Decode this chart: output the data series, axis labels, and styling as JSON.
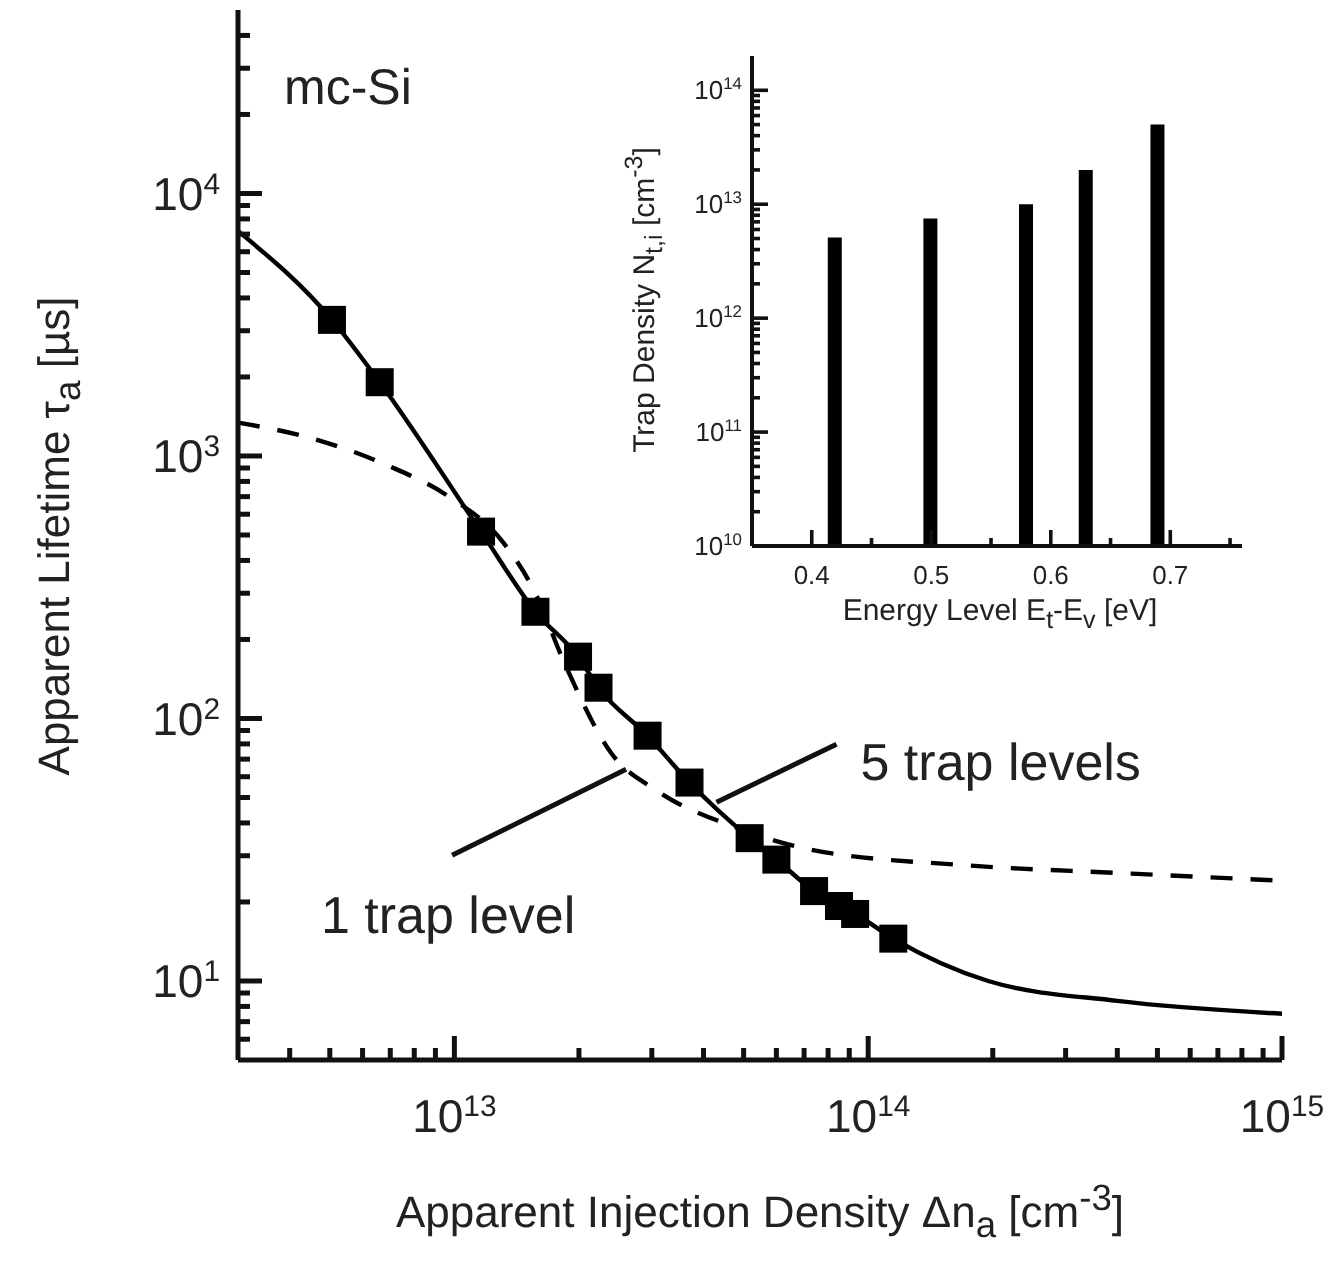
{
  "chart_data": [
    {
      "type": "line",
      "xlabel": "Apparent Injection Density Δn$_{a}$ [cm$^{-3}$]",
      "ylabel": "Apparent Lifetime τ$_{a}$ [µs]",
      "log": "xy",
      "xlim": [
        3000000000000.0,
        1000000000000000.0
      ],
      "ylim": [
        5,
        50000
      ],
      "xticks": [
        {
          "value": 4000000000000.0,
          "label": null
        },
        {
          "value": 5000000000000.0,
          "label": null
        },
        {
          "value": 6000000000000.0,
          "label": null
        },
        {
          "value": 7000000000000.0,
          "label": null
        },
        {
          "value": 8000000000000.0,
          "label": null
        },
        {
          "value": 9000000000000.0,
          "label": null
        },
        {
          "value": 10000000000000.0,
          "label": "10$^{13}$"
        },
        {
          "value": 20000000000000.0,
          "label": null
        },
        {
          "value": 30000000000000.0,
          "label": null
        },
        {
          "value": 40000000000000.0,
          "label": null
        },
        {
          "value": 50000000000000.0,
          "label": null
        },
        {
          "value": 60000000000000.0,
          "label": null
        },
        {
          "value": 70000000000000.0,
          "label": null
        },
        {
          "value": 80000000000000.0,
          "label": null
        },
        {
          "value": 90000000000000.0,
          "label": null
        },
        {
          "value": 100000000000000.0,
          "label": "10$^{14}$"
        },
        {
          "value": 200000000000000.0,
          "label": null
        },
        {
          "value": 300000000000000.0,
          "label": null
        },
        {
          "value": 400000000000000.0,
          "label": null
        },
        {
          "value": 500000000000000.0,
          "label": null
        },
        {
          "value": 600000000000000.0,
          "label": null
        },
        {
          "value": 700000000000000.0,
          "label": null
        },
        {
          "value": 800000000000000.0,
          "label": null
        },
        {
          "value": 900000000000000.0,
          "label": null
        },
        {
          "value": 1000000000000000.0,
          "label": "10$^{15}$"
        }
      ],
      "yticks": [
        {
          "value": 6,
          "label": null
        },
        {
          "value": 7,
          "label": null
        },
        {
          "value": 8,
          "label": null
        },
        {
          "value": 9,
          "label": null
        },
        {
          "value": 10,
          "label": "10$^{1}$"
        },
        {
          "value": 20,
          "label": null
        },
        {
          "value": 30,
          "label": null
        },
        {
          "value": 40,
          "label": null
        },
        {
          "value": 50,
          "label": null
        },
        {
          "value": 60,
          "label": null
        },
        {
          "value": 70,
          "label": null
        },
        {
          "value": 80,
          "label": null
        },
        {
          "value": 90,
          "label": null
        },
        {
          "value": 100,
          "label": "10$^{2}$"
        },
        {
          "value": 200,
          "label": null
        },
        {
          "value": 300,
          "label": null
        },
        {
          "value": 400,
          "label": null
        },
        {
          "value": 500,
          "label": null
        },
        {
          "value": 600,
          "label": null
        },
        {
          "value": 700,
          "label": null
        },
        {
          "value": 800,
          "label": null
        },
        {
          "value": 900,
          "label": null
        },
        {
          "value": 1000,
          "label": "10$^{3}$"
        },
        {
          "value": 2000,
          "label": null
        },
        {
          "value": 3000,
          "label": null
        },
        {
          "value": 4000,
          "label": null
        },
        {
          "value": 5000,
          "label": null
        },
        {
          "value": 6000,
          "label": null
        },
        {
          "value": 7000,
          "label": null
        },
        {
          "value": 8000,
          "label": null
        },
        {
          "value": 9000,
          "label": null
        },
        {
          "value": 10000,
          "label": "10$^{4}$"
        },
        {
          "value": 20000,
          "label": null
        },
        {
          "value": 30000,
          "label": null
        },
        {
          "value": 40000,
          "label": null
        }
      ],
      "series": [
        {
          "type": "line",
          "color": "#000000",
          "line_style": "solid",
          "marker": "none",
          "x": [
            3000000000000.0,
            5060000000000.0,
            6600000000000.0,
            11600000000000.0,
            15700000000000.0,
            19900000000000.0,
            22300000000000.0,
            29300000000000.0,
            37000000000000.0,
            51700000000000.0,
            60000000000000.0,
            74000000000000.0,
            85000000000000.0,
            93000000000000.0,
            115000000000000.0,
            195000000000000.0,
            400000000000000.0,
            1000000000000000.0
          ],
          "values": [
            7200,
            3300,
            1910,
            515,
            255,
            172,
            131,
            86,
            57,
            35,
            29,
            22,
            19.3,
            18,
            14.5,
            10,
            8.4,
            7.5
          ]
        },
        {
          "type": "line",
          "color": "#000000",
          "line_style": "dashed",
          "marker": "none",
          "x": [
            3000000000000.0,
            4500000000000.0,
            6900000000000.0,
            9700000000000.0,
            13100000000000.0,
            15500000000000.0,
            18500000000000.0,
            23900000000000.0,
            30900000000000.0,
            47400000000000.0,
            73000000000000.0,
            172000000000000.0,
            400000000000000.0,
            1000000000000000.0
          ],
          "values": [
            1340,
            1170,
            920,
            700,
            470,
            312,
            161,
            74,
            53,
            38.7,
            31.6,
            27.6,
            25.8,
            24.1
          ]
        },
        {
          "type": "scatter",
          "color": "#000000",
          "marker": "square",
          "x": [
            5060000000000.0,
            6600000000000.0,
            11600000000000.0,
            15700000000000.0,
            19900000000000.0,
            22300000000000.0,
            29300000000000.0,
            37000000000000.0,
            51700000000000.0,
            60000000000000.0,
            74000000000000.0,
            85000000000000.0,
            93000000000000.0,
            115000000000000.0
          ],
          "values": [
            3300,
            1910,
            515,
            255,
            172,
            131,
            86,
            57,
            35,
            29,
            22,
            19.3,
            18,
            14.5
          ]
        }
      ],
      "annotations": [
        "mc-Si",
        {
          "text": "5 trap levels",
          "x": 43000000000000.0,
          "y": 48
        },
        {
          "text": "1 trap level",
          "x": 26000000000000.0,
          "y": 64
        }
      ]
    },
    {
      "type": "bar",
      "xlabel": "Energy Level E$_{t}$-E$_{v}$ [eV]",
      "ylabel": "Trap Density N$_{t,i}$ [cm$^{-3}$]",
      "log": "y",
      "color": "#000000",
      "x": [
        0.42,
        0.5,
        0.58,
        0.63,
        0.69
      ],
      "values": [
        5100000000000.0,
        7500000000000.0,
        10000000000000.0,
        20000000000000.0,
        50000000000000.0
      ],
      "xlim": [
        0.35,
        0.76
      ],
      "ylim": [
        10000000000.0,
        200000000000000.0
      ],
      "xticks": [
        0.4,
        {
          "value": 0.45,
          "label": null
        },
        0.5,
        {
          "value": 0.55,
          "label": null
        },
        0.6,
        {
          "value": 0.65,
          "label": null
        },
        0.7,
        {
          "value": 0.75,
          "label": null
        }
      ],
      "yticks": [
        {
          "value": 10000000000.0,
          "label": "10$^{10}$"
        },
        {
          "value": 20000000000.0,
          "label": null
        },
        {
          "value": 30000000000.0,
          "label": null
        },
        {
          "value": 40000000000.0,
          "label": null
        },
        {
          "value": 50000000000.0,
          "label": null
        },
        {
          "value": 60000000000.0,
          "label": null
        },
        {
          "value": 70000000000.0,
          "label": null
        },
        {
          "value": 80000000000.0,
          "label": null
        },
        {
          "value": 90000000000.0,
          "label": null
        },
        {
          "value": 100000000000.0,
          "label": "10$^{11}$"
        },
        {
          "value": 200000000000.0,
          "label": null
        },
        {
          "value": 300000000000.0,
          "label": null
        },
        {
          "value": 400000000000.0,
          "label": null
        },
        {
          "value": 500000000000.0,
          "label": null
        },
        {
          "value": 600000000000.0,
          "label": null
        },
        {
          "value": 700000000000.0,
          "label": null
        },
        {
          "value": 800000000000.0,
          "label": null
        },
        {
          "value": 900000000000.0,
          "label": null
        },
        {
          "value": 1000000000000.0,
          "label": "10$^{12}$"
        },
        {
          "value": 2000000000000.0,
          "label": null
        },
        {
          "value": 3000000000000.0,
          "label": null
        },
        {
          "value": 4000000000000.0,
          "label": null
        },
        {
          "value": 5000000000000.0,
          "label": null
        },
        {
          "value": 6000000000000.0,
          "label": null
        },
        {
          "value": 7000000000000.0,
          "label": null
        },
        {
          "value": 8000000000000.0,
          "label": null
        },
        {
          "value": 9000000000000.0,
          "label": null
        },
        {
          "value": 10000000000000.0,
          "label": "10$^{13}$"
        },
        {
          "value": 20000000000000.0,
          "label": null
        },
        {
          "value": 30000000000000.0,
          "label": null
        },
        {
          "value": 40000000000000.0,
          "label": null
        },
        {
          "value": 50000000000000.0,
          "label": null
        },
        {
          "value": 60000000000000.0,
          "label": null
        },
        {
          "value": 70000000000000.0,
          "label": null
        },
        {
          "value": 80000000000000.0,
          "label": null
        },
        {
          "value": 90000000000000.0,
          "label": null
        },
        {
          "value": 100000000000000.0,
          "label": "10$^{14}$"
        }
      ]
    }
  ]
}
